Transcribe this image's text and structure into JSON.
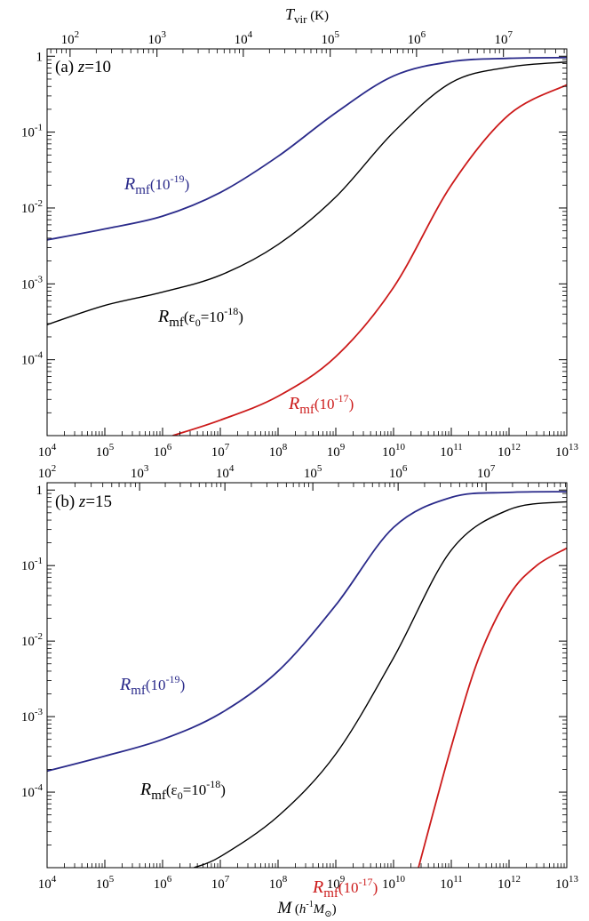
{
  "chart_data": [
    {
      "type": "line",
      "panel_label": "(a) z=10",
      "panel_label_parts": {
        "prefix": "(a) ",
        "var": "z",
        "suffix": "=10"
      },
      "x_scale": "log",
      "y_scale": "log",
      "xlim": [
        10000,
        10000000000000
      ],
      "ylim": [
        1e-05,
        1.25
      ],
      "x_tick_exponents": [
        4,
        5,
        6,
        7,
        8,
        9,
        10,
        11,
        12,
        13
      ],
      "y_ticks": [
        {
          "value": 1,
          "label": "1"
        },
        {
          "value": 0.1,
          "label": "10",
          "exp": "-1"
        },
        {
          "value": 0.01,
          "label": "10",
          "exp": "-2"
        },
        {
          "value": 0.001,
          "label": "10",
          "exp": "-3"
        },
        {
          "value": 0.0001,
          "label": "10",
          "exp": "-4"
        }
      ],
      "top_axis": {
        "label_var": "T",
        "label_sub": "vir",
        "label_unit": " (K)",
        "tick_exponents": [
          2,
          3,
          4,
          5,
          6,
          7
        ],
        "tick_mass": [
          25000,
          800000,
          25000000,
          800000000,
          25000000000,
          800000000000
        ]
      },
      "series": [
        {
          "name": "Rmf(10-19)",
          "label_parts": {
            "r": "R",
            "sub": "mf",
            "open": "(10",
            "sup": "-19",
            "close": ")"
          },
          "color": "#2a2a8a",
          "x": [
            10000,
            100000,
            1000000,
            10000000,
            100000000,
            1000000000,
            10000000000,
            100000000000,
            1000000000000,
            10000000000000
          ],
          "y": [
            0.0038,
            0.0053,
            0.0078,
            0.016,
            0.048,
            0.18,
            0.55,
            0.85,
            0.94,
            0.96
          ]
        },
        {
          "name": "Rmf(ε0=10-18)",
          "label_parts": {
            "r": "R",
            "sub": "mf",
            "open": "(ε",
            "sub2": "0",
            "mid": "=10",
            "sup": "-18",
            "close": ")"
          },
          "color": "#000000",
          "x": [
            10000,
            100000,
            1000000,
            10000000,
            100000000,
            1000000000,
            10000000000,
            100000000000,
            1000000000000,
            10000000000000
          ],
          "y": [
            0.00029,
            0.00052,
            0.00078,
            0.0013,
            0.0033,
            0.014,
            0.1,
            0.45,
            0.72,
            0.84
          ]
        },
        {
          "name": "Rmf(10-17)",
          "label_parts": {
            "r": "R",
            "sub": "mf",
            "open": "(10",
            "sup": "-17",
            "close": ")"
          },
          "color": "#cc1a1a",
          "x": [
            1500000,
            10000000,
            100000000,
            1000000000,
            10000000000,
            100000000000,
            1000000000000,
            10000000000000
          ],
          "y": [
            1e-05,
            1.6e-05,
            3.3e-05,
            0.00011,
            0.0009,
            0.02,
            0.17,
            0.42
          ]
        }
      ]
    },
    {
      "type": "line",
      "panel_label": "(b) z=15",
      "panel_label_parts": {
        "prefix": "(b) ",
        "var": "z",
        "suffix": "=15"
      },
      "x_scale": "log",
      "y_scale": "log",
      "xlim": [
        10000,
        10000000000000
      ],
      "ylim": [
        1e-05,
        1.25
      ],
      "x_tick_exponents": [
        4,
        5,
        6,
        7,
        8,
        9,
        10,
        11,
        12,
        13
      ],
      "xlabel_parts": {
        "var": "M",
        "open": " (",
        "h": "h",
        "sup": "-1",
        "m": "M",
        "sun": "⊙",
        "close": ")"
      },
      "y_ticks": [
        {
          "value": 1,
          "label": "1"
        },
        {
          "value": 0.1,
          "label": "10",
          "exp": "-1"
        },
        {
          "value": 0.01,
          "label": "10",
          "exp": "-2"
        },
        {
          "value": 0.001,
          "label": "10",
          "exp": "-3"
        },
        {
          "value": 0.0001,
          "label": "10",
          "exp": "-4"
        }
      ],
      "top_axis": {
        "tick_exponents": [
          2,
          3,
          4,
          5,
          6,
          7
        ],
        "tick_mass": [
          10000,
          400000,
          12000000,
          400000000,
          12000000000,
          400000000000
        ]
      },
      "series": [
        {
          "name": "Rmf(10-19)",
          "label_parts": {
            "r": "R",
            "sub": "mf",
            "open": "(10",
            "sup": "-19",
            "close": ")"
          },
          "color": "#2a2a8a",
          "x": [
            10000,
            100000,
            1000000,
            10000000,
            100000000,
            1000000000,
            10000000000,
            100000000000,
            1000000000000,
            10000000000000
          ],
          "y": [
            0.00019,
            0.0003,
            0.0005,
            0.0011,
            0.004,
            0.03,
            0.32,
            0.8,
            0.93,
            0.95
          ]
        },
        {
          "name": "Rmf(ε0=10-18)",
          "label_parts": {
            "r": "R",
            "sub": "mf",
            "open": "(ε",
            "sub2": "0",
            "mid": "=10",
            "sup": "-18",
            "close": ")"
          },
          "color": "#000000",
          "x": [
            3500000,
            10000000,
            100000000,
            1000000000,
            10000000000,
            100000000000,
            1000000000000,
            10000000000000
          ],
          "y": [
            1e-05,
            1.4e-05,
            4.8e-05,
            0.00032,
            0.006,
            0.16,
            0.55,
            0.7
          ]
        },
        {
          "name": "Rmf(10-17)",
          "label_parts": {
            "r": "R",
            "sub": "mf",
            "open": "(10",
            "sup": "-17",
            "close": ")"
          },
          "color": "#cc1a1a",
          "x": [
            27000000000,
            100000000000,
            300000000000,
            1000000000000,
            3000000000000,
            10000000000000
          ],
          "y": [
            1e-05,
            0.0004,
            0.006,
            0.04,
            0.1,
            0.17
          ]
        }
      ]
    }
  ]
}
